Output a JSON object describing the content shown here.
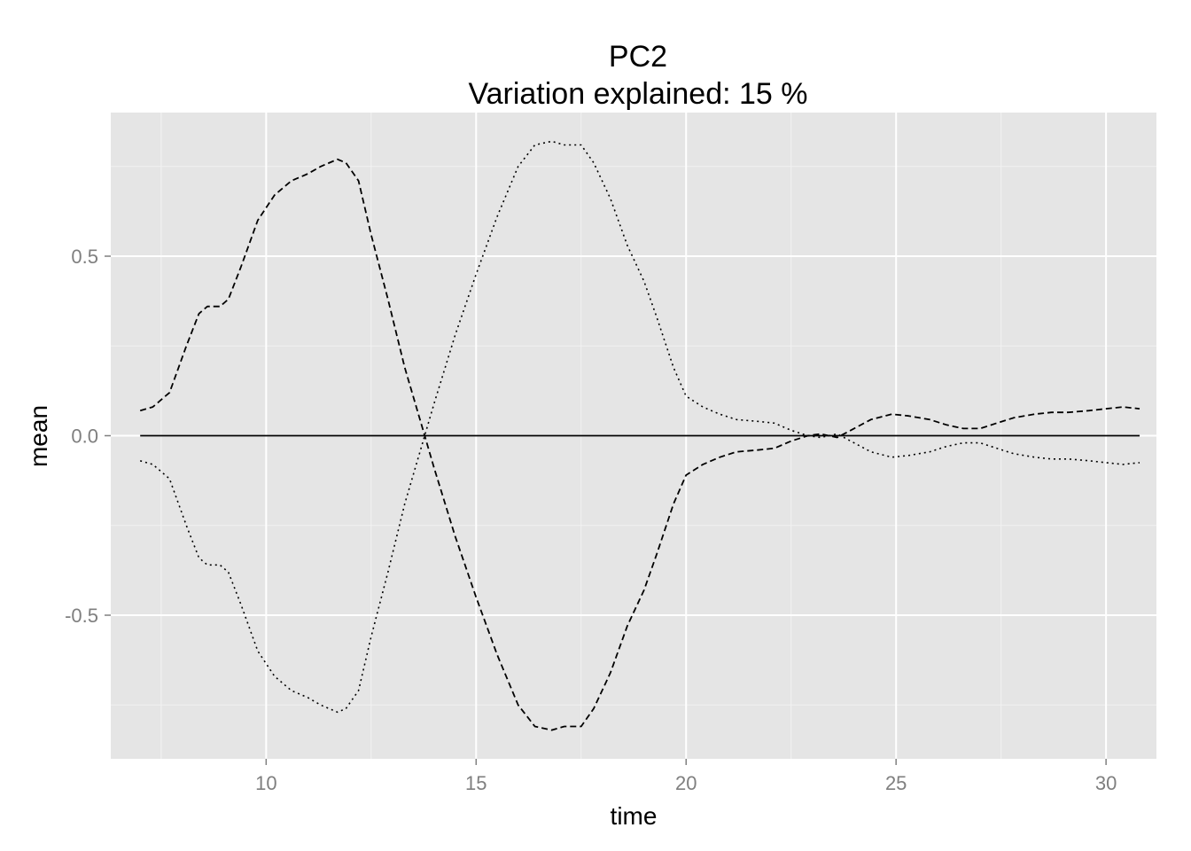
{
  "chart_data": {
    "type": "line",
    "title": "PC2",
    "subtitle": "Variation explained: 15 %",
    "xlabel": "time",
    "ylabel": "mean",
    "xlim": [
      6.3,
      31.2
    ],
    "ylim": [
      -0.9,
      0.9
    ],
    "x_ticks": [
      10,
      15,
      20,
      25,
      30
    ],
    "x_tick_labels": [
      "10",
      "15",
      "20",
      "25",
      "30"
    ],
    "y_ticks": [
      -0.5,
      0.0,
      0.5
    ],
    "y_tick_labels": [
      "-0.5",
      "0.0",
      "0.5"
    ],
    "grid": true,
    "legend": "none",
    "colors": {
      "panel_background": "#e5e5e5",
      "major_grid": "#ffffff",
      "minor_grid": "#f2f2f2",
      "line": "#000000",
      "tick_label": "#7f7f7f"
    },
    "series": [
      {
        "line_style": "solid",
        "points": [
          [
            7.0,
            0.0
          ],
          [
            30.8,
            0.0
          ]
        ]
      },
      {
        "line_style": "dashed",
        "points": [
          [
            7.0,
            0.07
          ],
          [
            7.3,
            0.08
          ],
          [
            7.7,
            0.12
          ],
          [
            8.1,
            0.25
          ],
          [
            8.4,
            0.34
          ],
          [
            8.6,
            0.36
          ],
          [
            8.9,
            0.36
          ],
          [
            9.1,
            0.38
          ],
          [
            9.4,
            0.47
          ],
          [
            9.8,
            0.6
          ],
          [
            10.2,
            0.67
          ],
          [
            10.6,
            0.71
          ],
          [
            11.0,
            0.73
          ],
          [
            11.3,
            0.75
          ],
          [
            11.7,
            0.77
          ],
          [
            11.9,
            0.76
          ],
          [
            12.2,
            0.71
          ],
          [
            12.5,
            0.56
          ],
          [
            12.9,
            0.38
          ],
          [
            13.3,
            0.19
          ],
          [
            13.7,
            0.03
          ],
          [
            14.0,
            -0.09
          ],
          [
            14.5,
            -0.28
          ],
          [
            15.0,
            -0.45
          ],
          [
            15.5,
            -0.61
          ],
          [
            16.0,
            -0.75
          ],
          [
            16.4,
            -0.81
          ],
          [
            16.8,
            -0.82
          ],
          [
            17.1,
            -0.81
          ],
          [
            17.5,
            -0.81
          ],
          [
            17.8,
            -0.76
          ],
          [
            18.2,
            -0.66
          ],
          [
            18.6,
            -0.53
          ],
          [
            19.0,
            -0.43
          ],
          [
            19.3,
            -0.33
          ],
          [
            19.7,
            -0.19
          ],
          [
            20.0,
            -0.11
          ],
          [
            20.4,
            -0.08
          ],
          [
            20.8,
            -0.06
          ],
          [
            21.2,
            -0.045
          ],
          [
            21.7,
            -0.04
          ],
          [
            22.1,
            -0.035
          ],
          [
            22.5,
            -0.015
          ],
          [
            22.9,
            0.0
          ],
          [
            23.2,
            0.005
          ],
          [
            23.6,
            -0.005
          ],
          [
            24.0,
            0.02
          ],
          [
            24.4,
            0.045
          ],
          [
            24.9,
            0.06
          ],
          [
            25.3,
            0.055
          ],
          [
            25.8,
            0.045
          ],
          [
            26.2,
            0.03
          ],
          [
            26.6,
            0.02
          ],
          [
            27.0,
            0.02
          ],
          [
            27.4,
            0.035
          ],
          [
            27.8,
            0.05
          ],
          [
            28.3,
            0.06
          ],
          [
            28.7,
            0.065
          ],
          [
            29.1,
            0.065
          ],
          [
            29.6,
            0.07
          ],
          [
            30.0,
            0.075
          ],
          [
            30.4,
            0.08
          ],
          [
            30.8,
            0.075
          ]
        ]
      },
      {
        "line_style": "dotted",
        "points": [
          [
            7.0,
            -0.07
          ],
          [
            7.3,
            -0.08
          ],
          [
            7.7,
            -0.12
          ],
          [
            8.1,
            -0.25
          ],
          [
            8.4,
            -0.34
          ],
          [
            8.6,
            -0.36
          ],
          [
            8.9,
            -0.36
          ],
          [
            9.1,
            -0.38
          ],
          [
            9.4,
            -0.47
          ],
          [
            9.8,
            -0.6
          ],
          [
            10.2,
            -0.67
          ],
          [
            10.6,
            -0.71
          ],
          [
            11.0,
            -0.73
          ],
          [
            11.3,
            -0.75
          ],
          [
            11.7,
            -0.77
          ],
          [
            11.9,
            -0.76
          ],
          [
            12.2,
            -0.71
          ],
          [
            12.5,
            -0.56
          ],
          [
            12.9,
            -0.38
          ],
          [
            13.3,
            -0.19
          ],
          [
            13.7,
            -0.03
          ],
          [
            14.0,
            0.09
          ],
          [
            14.5,
            0.28
          ],
          [
            15.0,
            0.45
          ],
          [
            15.5,
            0.61
          ],
          [
            16.0,
            0.75
          ],
          [
            16.4,
            0.81
          ],
          [
            16.8,
            0.82
          ],
          [
            17.1,
            0.81
          ],
          [
            17.5,
            0.81
          ],
          [
            17.8,
            0.76
          ],
          [
            18.2,
            0.66
          ],
          [
            18.6,
            0.53
          ],
          [
            19.0,
            0.43
          ],
          [
            19.3,
            0.33
          ],
          [
            19.7,
            0.19
          ],
          [
            20.0,
            0.11
          ],
          [
            20.4,
            0.08
          ],
          [
            20.8,
            0.06
          ],
          [
            21.2,
            0.045
          ],
          [
            21.7,
            0.04
          ],
          [
            22.1,
            0.035
          ],
          [
            22.5,
            0.015
          ],
          [
            22.9,
            0.0
          ],
          [
            23.2,
            -0.005
          ],
          [
            23.6,
            0.005
          ],
          [
            24.0,
            -0.02
          ],
          [
            24.4,
            -0.045
          ],
          [
            24.9,
            -0.06
          ],
          [
            25.3,
            -0.055
          ],
          [
            25.8,
            -0.045
          ],
          [
            26.2,
            -0.03
          ],
          [
            26.6,
            -0.02
          ],
          [
            27.0,
            -0.02
          ],
          [
            27.4,
            -0.035
          ],
          [
            27.8,
            -0.05
          ],
          [
            28.3,
            -0.06
          ],
          [
            28.7,
            -0.065
          ],
          [
            29.1,
            -0.065
          ],
          [
            29.6,
            -0.07
          ],
          [
            30.0,
            -0.075
          ],
          [
            30.4,
            -0.08
          ],
          [
            30.8,
            -0.075
          ]
        ]
      }
    ]
  }
}
